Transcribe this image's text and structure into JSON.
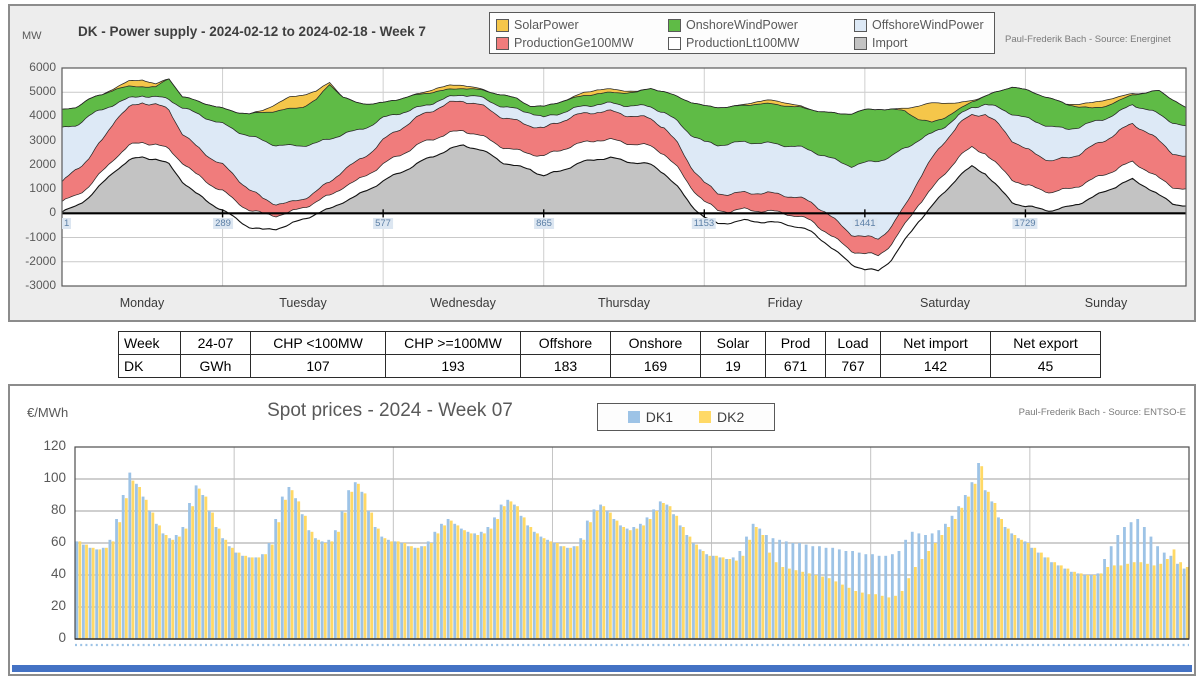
{
  "chart_data": [
    {
      "type": "stacked-area",
      "title": "DK - Power supply - 2024-02-12 to 2024-02-18 - Week 7",
      "unit": "MW",
      "source": "Paul-Frederik Bach - Source: Energinet",
      "ylim": [
        -3000,
        6000
      ],
      "y_ticks": [
        6000,
        5000,
        4000,
        3000,
        2000,
        1000,
        0,
        -1000,
        -2000,
        -3000
      ],
      "x_tick_labels": [
        "1",
        "289",
        "577",
        "865",
        "1153",
        "1441",
        "1729"
      ],
      "x_unit": "5-minute interval of week (1-2016), ticks at day starts",
      "day_labels": [
        "Monday",
        "Tuesday",
        "Wednesday",
        "Thursday",
        "Friday",
        "Saturday",
        "Sunday"
      ],
      "sample_step_hours": 2,
      "stack_order": [
        "Import",
        "ProductionLt100MW",
        "ProductionGe100MW",
        "OffshoreWindPower",
        "OnshoreWindPower",
        "SolarPower"
      ],
      "series": [
        {
          "name": "Import",
          "color": "#c3c3c3",
          "values": [
            50,
            250,
            650,
            1200,
            1800,
            2200,
            2350,
            2250,
            2000,
            1300,
            800,
            450,
            150,
            -200,
            -550,
            -700,
            -650,
            -500,
            -250,
            0,
            200,
            500,
            700,
            1000,
            1300,
            1600,
            1900,
            2200,
            2450,
            2650,
            2800,
            2650,
            2400,
            2100,
            1950,
            1850,
            1550,
            1700,
            1900,
            2100,
            2250,
            2300,
            2200,
            2100,
            2000,
            1650,
            1050,
            350,
            -150,
            -400,
            -350,
            -300,
            -350,
            -400,
            -450,
            -550,
            -750,
            -1150,
            -1650,
            -2100,
            -2350,
            -2400,
            -1900,
            -1100,
            -300,
            300,
            900,
            1500,
            1900,
            1650,
            1050,
            500,
            300,
            200,
            100,
            200,
            400,
            650,
            950,
            1200,
            1400,
            1100,
            700,
            400,
            300
          ]
        },
        {
          "name": "ProductionLt100MW",
          "color": "#ffffff",
          "values": [
            400,
            450,
            450,
            500,
            550,
            600,
            600,
            600,
            600,
            800,
            800,
            800,
            800,
            700,
            700,
            650,
            550,
            500,
            500,
            500,
            550,
            600,
            600,
            650,
            700,
            750,
            750,
            750,
            700,
            650,
            600,
            600,
            600,
            650,
            650,
            650,
            800,
            850,
            850,
            800,
            800,
            750,
            750,
            750,
            750,
            800,
            800,
            750,
            650,
            550,
            450,
            450,
            450,
            450,
            450,
            450,
            450,
            450,
            500,
            550,
            650,
            650,
            650,
            650,
            700,
            700,
            750,
            800,
            800,
            850,
            900,
            950,
            850,
            800,
            750,
            750,
            750,
            750,
            700,
            700,
            700,
            700,
            700,
            700,
            700
          ]
        },
        {
          "name": "ProductionGe100MW",
          "color": "#f07c7c",
          "values": [
            800,
            1100,
            1150,
            1300,
            1550,
            1550,
            1650,
            1650,
            1650,
            1200,
            1150,
            1100,
            1050,
            1000,
            850,
            650,
            500,
            400,
            350,
            400,
            550,
            700,
            800,
            850,
            1000,
            1050,
            1100,
            1150,
            1200,
            1250,
            1250,
            1250,
            1250,
            1200,
            1200,
            1150,
            1150,
            1200,
            1200,
            1200,
            1150,
            1150,
            1150,
            1150,
            1150,
            1100,
            1000,
            850,
            750,
            700,
            700,
            700,
            750,
            750,
            750,
            750,
            750,
            800,
            750,
            700,
            700,
            700,
            700,
            750,
            1000,
            1250,
            1350,
            1350,
            1350,
            1600,
            1700,
            1600,
            1500,
            1400,
            1300,
            1300,
            1300,
            1350,
            1400,
            1500,
            1600,
            1600,
            1550,
            1400,
            1300
          ]
        },
        {
          "name": "OffshoreWindPower",
          "color": "#dde9f6",
          "values": [
            2250,
            1800,
            1750,
            1250,
            650,
            400,
            300,
            300,
            450,
            1050,
            1350,
            1550,
            1700,
            1950,
            2200,
            2400,
            2400,
            2350,
            2200,
            2000,
            1800,
            1500,
            1300,
            1100,
            900,
            700,
            500,
            350,
            300,
            250,
            250,
            300,
            350,
            450,
            500,
            550,
            450,
            350,
            300,
            300,
            300,
            350,
            400,
            450,
            500,
            600,
            900,
            1300,
            1700,
            2000,
            2100,
            2100,
            2050,
            2050,
            2050,
            2100,
            2150,
            2300,
            2550,
            2800,
            3050,
            3200,
            2900,
            2400,
            1650,
            1050,
            600,
            350,
            300,
            400,
            700,
            1100,
            1300,
            1350,
            1400,
            1200,
            1100,
            1000,
            900,
            800,
            800,
            900,
            1100,
            1250,
            1250
          ]
        },
        {
          "name": "OnshoreWindPower",
          "color": "#5fbb46",
          "values": [
            750,
            750,
            700,
            650,
            600,
            500,
            350,
            400,
            850,
            450,
            550,
            600,
            650,
            750,
            900,
            1150,
            1400,
            1550,
            1600,
            1800,
            2250,
            1500,
            1150,
            900,
            650,
            600,
            600,
            500,
            400,
            300,
            250,
            300,
            400,
            500,
            450,
            250,
            450,
            450,
            450,
            450,
            450,
            450,
            500,
            550,
            750,
            850,
            1050,
            1350,
            1500,
            1550,
            1500,
            1500,
            1600,
            1650,
            1650,
            1650,
            1700,
            1800,
            1950,
            2150,
            2200,
            2150,
            1950,
            1550,
            850,
            450,
            350,
            250,
            250,
            350,
            700,
            1100,
            1150,
            1150,
            1150,
            1050,
            850,
            600,
            500,
            450,
            400,
            650,
            1000,
            950,
            800
          ]
        },
        {
          "name": "SolarPower",
          "color": "#f5c64a",
          "values": [
            0,
            0,
            0,
            0,
            60,
            220,
            280,
            120,
            0,
            0,
            0,
            0,
            0,
            0,
            0,
            80,
            300,
            480,
            500,
            350,
            80,
            0,
            0,
            0,
            0,
            0,
            0,
            50,
            130,
            170,
            130,
            60,
            0,
            0,
            0,
            0,
            0,
            0,
            30,
            130,
            160,
            140,
            90,
            30,
            0,
            0,
            0,
            0,
            0,
            0,
            0,
            40,
            110,
            150,
            130,
            60,
            0,
            0,
            0,
            0,
            0,
            0,
            0,
            100,
            550,
            800,
            600,
            280,
            50,
            0,
            0,
            0,
            0,
            0,
            0,
            0,
            110,
            220,
            260,
            160,
            50,
            0,
            0,
            0,
            0
          ]
        }
      ],
      "legend": [
        {
          "label": "SolarPower",
          "color": "#f5c64a"
        },
        {
          "label": "OnshoreWindPower",
          "color": "#5fbb46"
        },
        {
          "label": "OffshoreWindPower",
          "color": "#dde9f6"
        },
        {
          "label": "ProductionGe100MW",
          "color": "#f07c7c"
        },
        {
          "label": "ProductionLt100MW",
          "color": "#ffffff"
        },
        {
          "label": "Import",
          "color": "#c3c3c3"
        }
      ]
    },
    {
      "type": "bar",
      "title": "Spot prices - 2024 - Week 07",
      "unit": "€/MWh",
      "source": "Paul-Frederik Bach - Source: ENTSO-E",
      "ylim": [
        0,
        120
      ],
      "y_ticks": [
        120,
        100,
        80,
        60,
        40,
        20,
        0
      ],
      "x_unit": "hour of week (1-168), Monday-Sunday",
      "series": [
        {
          "name": "DK1",
          "color": "#9dc3e6",
          "values": [
            61,
            59,
            57,
            56,
            57,
            62,
            75,
            90,
            104,
            97,
            89,
            80,
            72,
            66,
            63,
            65,
            70,
            85,
            96,
            90,
            80,
            70,
            63,
            58,
            54,
            52,
            51,
            51,
            53,
            60,
            75,
            89,
            95,
            88,
            78,
            68,
            63,
            61,
            62,
            68,
            80,
            93,
            98,
            92,
            80,
            70,
            64,
            62,
            61,
            60,
            58,
            57,
            58,
            61,
            67,
            72,
            75,
            72,
            69,
            67,
            66,
            67,
            70,
            76,
            84,
            87,
            84,
            77,
            71,
            67,
            64,
            62,
            60,
            58,
            57,
            58,
            63,
            74,
            81,
            84,
            80,
            75,
            71,
            69,
            70,
            72,
            76,
            81,
            86,
            84,
            78,
            71,
            65,
            60,
            56,
            53,
            52,
            51,
            50,
            51,
            55,
            64,
            72,
            69,
            65,
            63,
            62,
            61,
            60,
            60,
            59,
            58,
            58,
            57,
            57,
            56,
            55,
            55,
            54,
            53,
            53,
            52,
            52,
            53,
            55,
            62,
            67,
            66,
            65,
            66,
            68,
            72,
            77,
            83,
            90,
            98,
            110,
            93,
            86,
            76,
            70,
            66,
            63,
            61,
            57,
            54,
            51,
            48,
            46,
            44,
            42,
            41,
            40,
            40,
            41,
            50,
            58,
            65,
            70,
            73,
            75,
            70,
            64,
            58,
            54,
            52,
            47,
            44
          ]
        },
        {
          "name": "DK2",
          "color": "#ffd966",
          "values": [
            61,
            59,
            57,
            56,
            57,
            61,
            73,
            88,
            99,
            95,
            87,
            79,
            71,
            65,
            62,
            64,
            69,
            83,
            94,
            89,
            79,
            69,
            62,
            57,
            54,
            52,
            51,
            51,
            53,
            59,
            73,
            87,
            93,
            86,
            77,
            67,
            62,
            60,
            61,
            67,
            79,
            92,
            97,
            91,
            79,
            69,
            63,
            61,
            61,
            60,
            58,
            57,
            58,
            60,
            66,
            71,
            74,
            71,
            68,
            66,
            65,
            66,
            69,
            75,
            83,
            86,
            83,
            76,
            70,
            66,
            63,
            61,
            60,
            58,
            57,
            58,
            62,
            73,
            80,
            83,
            79,
            74,
            70,
            68,
            69,
            71,
            75,
            80,
            85,
            83,
            77,
            70,
            64,
            59,
            55,
            52,
            52,
            51,
            50,
            49,
            52,
            62,
            70,
            65,
            54,
            48,
            45,
            44,
            43,
            42,
            41,
            40,
            39,
            38,
            36,
            34,
            32,
            30,
            29,
            28,
            28,
            27,
            26,
            27,
            30,
            38,
            45,
            50,
            55,
            60,
            65,
            70,
            75,
            82,
            89,
            97,
            108,
            92,
            85,
            75,
            69,
            65,
            62,
            60,
            57,
            54,
            51,
            48,
            46,
            44,
            42,
            41,
            40,
            40,
            41,
            45,
            46,
            46,
            47,
            48,
            48,
            47,
            46,
            47,
            50,
            56,
            48,
            45
          ]
        }
      ]
    }
  ],
  "summary_table": {
    "headers": [
      "Week",
      "24-07",
      "CHP <100MW",
      "CHP >=100MW",
      "Offshore",
      "Onshore",
      "Solar",
      "Prod",
      "Load",
      "Net import",
      "Net export"
    ],
    "rows": [
      [
        "DK",
        "GWh",
        "107",
        "193",
        "183",
        "169",
        "19",
        "671",
        "767",
        "142",
        "45"
      ]
    ]
  }
}
